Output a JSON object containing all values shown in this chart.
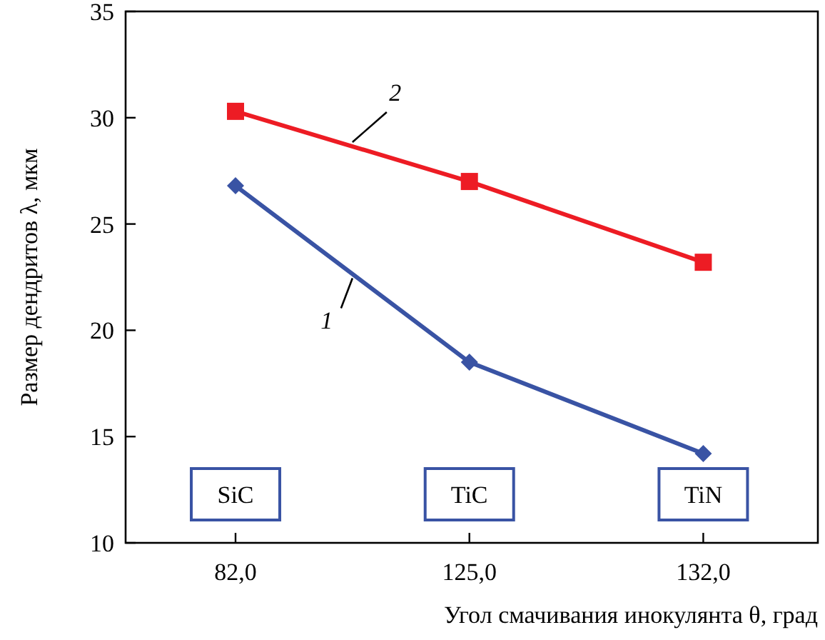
{
  "chart_data": {
    "type": "line",
    "xlabel": "Угол смачивания инокулянта θ, град",
    "ylabel": "Размер дендритов λ, мкм",
    "categories": [
      "82,0",
      "125,0",
      "132,0"
    ],
    "series": [
      {
        "name": "1",
        "color": "#3953a4",
        "values": [
          26.8,
          18.5,
          14.2
        ],
        "marker": "diamond"
      },
      {
        "name": "2",
        "color": "#ed1c24",
        "values": [
          30.3,
          27.0,
          23.2
        ],
        "marker": "square"
      }
    ],
    "ylim": [
      10,
      35
    ],
    "yticks": [
      10,
      15,
      20,
      25,
      30,
      35
    ],
    "grid": false,
    "line_style": "solid",
    "annotations": [
      "SiC",
      "TiC",
      "TiN"
    ]
  }
}
